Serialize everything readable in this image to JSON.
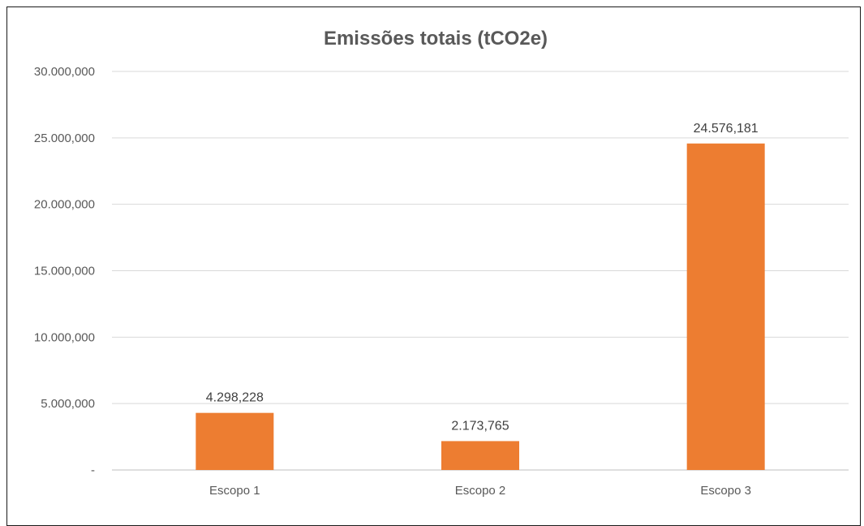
{
  "chart_data": {
    "type": "bar",
    "title": "Emissões totais (tCO2e)",
    "categories": [
      "Escopo 1",
      "Escopo 2",
      "Escopo 3"
    ],
    "values": [
      4298228,
      2173765,
      24576181
    ],
    "value_labels": [
      "4.298,228",
      "2.173,765",
      "24.576,181"
    ],
    "ylim": [
      0,
      30000000
    ],
    "yticks": [
      0,
      5000000,
      10000000,
      15000000,
      20000000,
      25000000,
      30000000
    ],
    "ytick_labels": [
      "-",
      "5.000,000",
      "10.000,000",
      "15.000,000",
      "20.000,000",
      "25.000,000",
      "30.000,000"
    ],
    "grid": true,
    "legend": "none",
    "bar_color": "#ED7D31"
  }
}
